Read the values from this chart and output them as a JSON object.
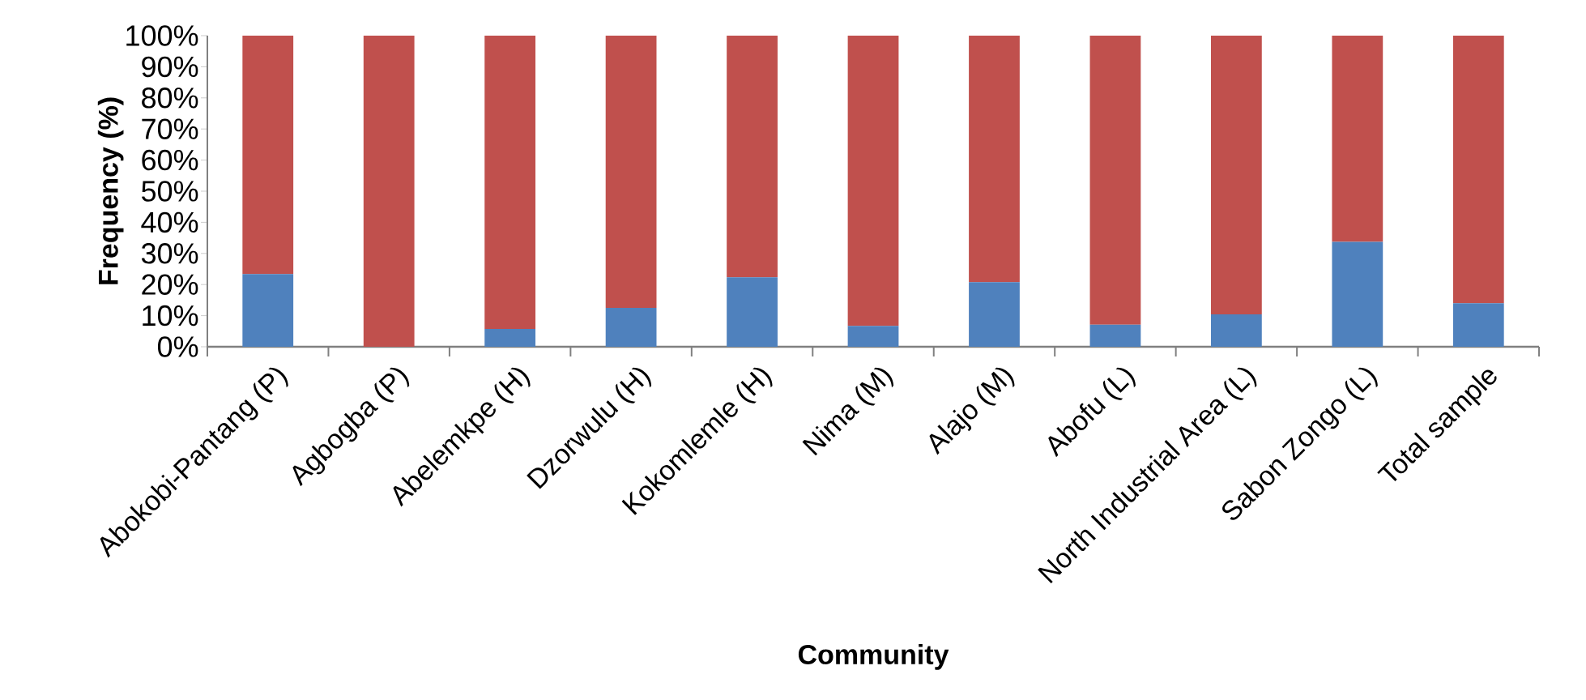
{
  "chart_data": {
    "type": "bar",
    "stacked": true,
    "xlabel": "Community",
    "ylabel": "Frequency (%)",
    "categories": [
      "Abokobi-Pantang (P)",
      "Agbogba (P)",
      "Abelemkpe (H)",
      "Dzorwulu (H)",
      "Kokomlemle (H)",
      "Nima (M)",
      "Alajo (M)",
      "Abofu (L)",
      "North Industrial Area (L)",
      "Sabon Zongo (L)",
      "Total sample"
    ],
    "series": [
      {
        "color": "#4f81bd",
        "values": [
          23.4,
          0,
          5.7,
          12.5,
          22.3,
          6.7,
          20.8,
          7.1,
          10.4,
          33.7,
          14.0
        ]
      },
      {
        "color": "#c0504d",
        "values": [
          76.6,
          100,
          94.3,
          87.5,
          77.7,
          93.3,
          79.2,
          92.9,
          89.6,
          66.3,
          86.0
        ]
      }
    ],
    "ylim": [
      0,
      100
    ],
    "yticks": [
      {
        "value": 0,
        "label": "0%"
      },
      {
        "value": 10,
        "label": "10%"
      },
      {
        "value": 20,
        "label": "20%"
      },
      {
        "value": 30,
        "label": "30%"
      },
      {
        "value": 40,
        "label": "40%"
      },
      {
        "value": 50,
        "label": "50%"
      },
      {
        "value": 60,
        "label": "60%"
      },
      {
        "value": 70,
        "label": "70%"
      },
      {
        "value": 80,
        "label": "80%"
      },
      {
        "value": 90,
        "label": "90%"
      },
      {
        "value": 100,
        "label": "100%"
      }
    ],
    "grid": false
  }
}
